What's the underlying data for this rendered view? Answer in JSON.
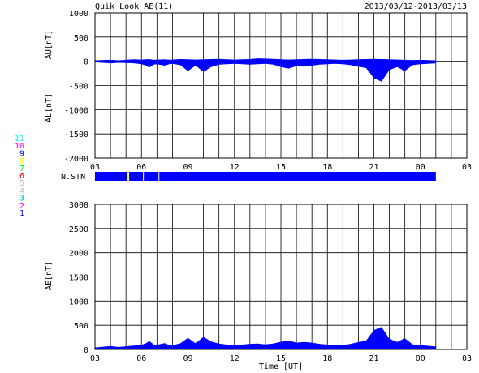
{
  "header": {
    "title": "Quik Look AE(11)",
    "date_range": "2013/03/12-2013/03/13"
  },
  "colors": {
    "au": "#0000ff",
    "al": "#0000ff",
    "ae": "#0000ff",
    "nstn_bar": "#0000ff",
    "nstn_gap": "#ffff00",
    "grid": "#000000"
  },
  "station_legend": [
    {
      "label": "11",
      "color": "#00ffff"
    },
    {
      "label": "10",
      "color": "#ff00ff"
    },
    {
      "label": "9",
      "color": "#0000ff"
    },
    {
      "label": "8",
      "color": "#ffff00"
    },
    {
      "label": "7",
      "color": "#00ff00"
    },
    {
      "label": "6",
      "color": "#ff0000"
    },
    {
      "label": "5",
      "color": "#c0c0c0"
    },
    {
      "label": "4",
      "color": "#c0c0c0"
    },
    {
      "label": "3",
      "color": "#00c0c0"
    },
    {
      "label": "2",
      "color": "#ff00ff"
    },
    {
      "label": "1",
      "color": "#0000ff"
    }
  ],
  "chart_data": [
    {
      "type": "area",
      "title": "Quik Look AE(11)",
      "ylabel_upper": "AU[nT]",
      "ylabel_lower": "AL[nT]",
      "ylim": [
        -2000,
        1000
      ],
      "yticks": [
        "1000",
        "500",
        "0",
        "-500",
        "-1000",
        "-1500",
        "-2000"
      ],
      "ytick_values": [
        1000,
        500,
        0,
        -500,
        -1000,
        -1500,
        -2000
      ],
      "xlim": [
        0,
        24
      ],
      "xticks": [
        "03",
        "06",
        "09",
        "12",
        "15",
        "18",
        "21",
        "00",
        "03"
      ],
      "x_hours": [
        0,
        0.5,
        1,
        1.5,
        2,
        2.5,
        3,
        3.3,
        3.5,
        3.8,
        4,
        4.5,
        4.8,
        5,
        5.5,
        6,
        6.5,
        7,
        7.5,
        8,
        8.5,
        9,
        9.5,
        10,
        10.5,
        11,
        11.5,
        12,
        12.5,
        13,
        13.5,
        14,
        14.5,
        15,
        15.5,
        16,
        16.5,
        17,
        17.5,
        18,
        18.5,
        19,
        19.5,
        20,
        20.5,
        21,
        21.5,
        22
      ],
      "series": [
        {
          "values": [
            20,
            25,
            30,
            20,
            30,
            40,
            35,
            40,
            45,
            30,
            35,
            40,
            30,
            35,
            45,
            40,
            35,
            40,
            45,
            50,
            40,
            35,
            40,
            45,
            60,
            55,
            50,
            40,
            35,
            40,
            45,
            50,
            45,
            40,
            35,
            30,
            35,
            40,
            45,
            50,
            45,
            40,
            35,
            30,
            25,
            30,
            25,
            20
          ]
        },
        {
          "values": [
            -20,
            -30,
            -40,
            -30,
            -35,
            -40,
            -60,
            -90,
            -130,
            -70,
            -60,
            -90,
            -60,
            -50,
            -80,
            -200,
            -90,
            -220,
            -120,
            -70,
            -60,
            -50,
            -60,
            -70,
            -60,
            -50,
            -70,
            -120,
            -150,
            -100,
            -110,
            -90,
            -70,
            -60,
            -50,
            -60,
            -80,
            -110,
            -140,
            -350,
            -420,
            -180,
            -120,
            -200,
            -80,
            -60,
            -50,
            -40
          ]
        }
      ]
    },
    {
      "type": "bar",
      "title": "N.STN",
      "xlim": [
        0,
        24
      ],
      "x_end": 22,
      "gaps_at_hours": [
        2.1,
        3.1,
        4.1
      ]
    },
    {
      "type": "area",
      "ylabel": "AE[nT]",
      "xlabel": "Time [UT]",
      "ylim": [
        0,
        3000
      ],
      "yticks": [
        "3000",
        "2500",
        "2000",
        "1500",
        "1000",
        "500",
        "0"
      ],
      "ytick_values": [
        3000,
        2500,
        2000,
        1500,
        1000,
        500,
        0
      ],
      "xlim": [
        0,
        24
      ],
      "xticks": [
        "03",
        "06",
        "09",
        "12",
        "15",
        "18",
        "21",
        "00",
        "03"
      ],
      "x_hours": [
        0,
        0.5,
        1,
        1.5,
        2,
        2.5,
        3,
        3.3,
        3.5,
        3.8,
        4,
        4.5,
        4.8,
        5,
        5.5,
        6,
        6.5,
        7,
        7.5,
        8,
        8.5,
        9,
        9.5,
        10,
        10.5,
        11,
        11.5,
        12,
        12.5,
        13,
        13.5,
        14,
        14.5,
        15,
        15.5,
        16,
        16.5,
        17,
        17.5,
        18,
        18.5,
        19,
        19.5,
        20,
        20.5,
        21,
        21.5,
        22
      ],
      "values": [
        40,
        55,
        70,
        50,
        65,
        80,
        95,
        130,
        175,
        100,
        95,
        130,
        90,
        85,
        125,
        240,
        125,
        260,
        165,
        120,
        100,
        85,
        100,
        115,
        120,
        105,
        120,
        160,
        185,
        140,
        155,
        140,
        115,
        100,
        85,
        90,
        115,
        150,
        185,
        400,
        465,
        220,
        155,
        230,
        105,
        90,
        75,
        60
      ]
    }
  ]
}
